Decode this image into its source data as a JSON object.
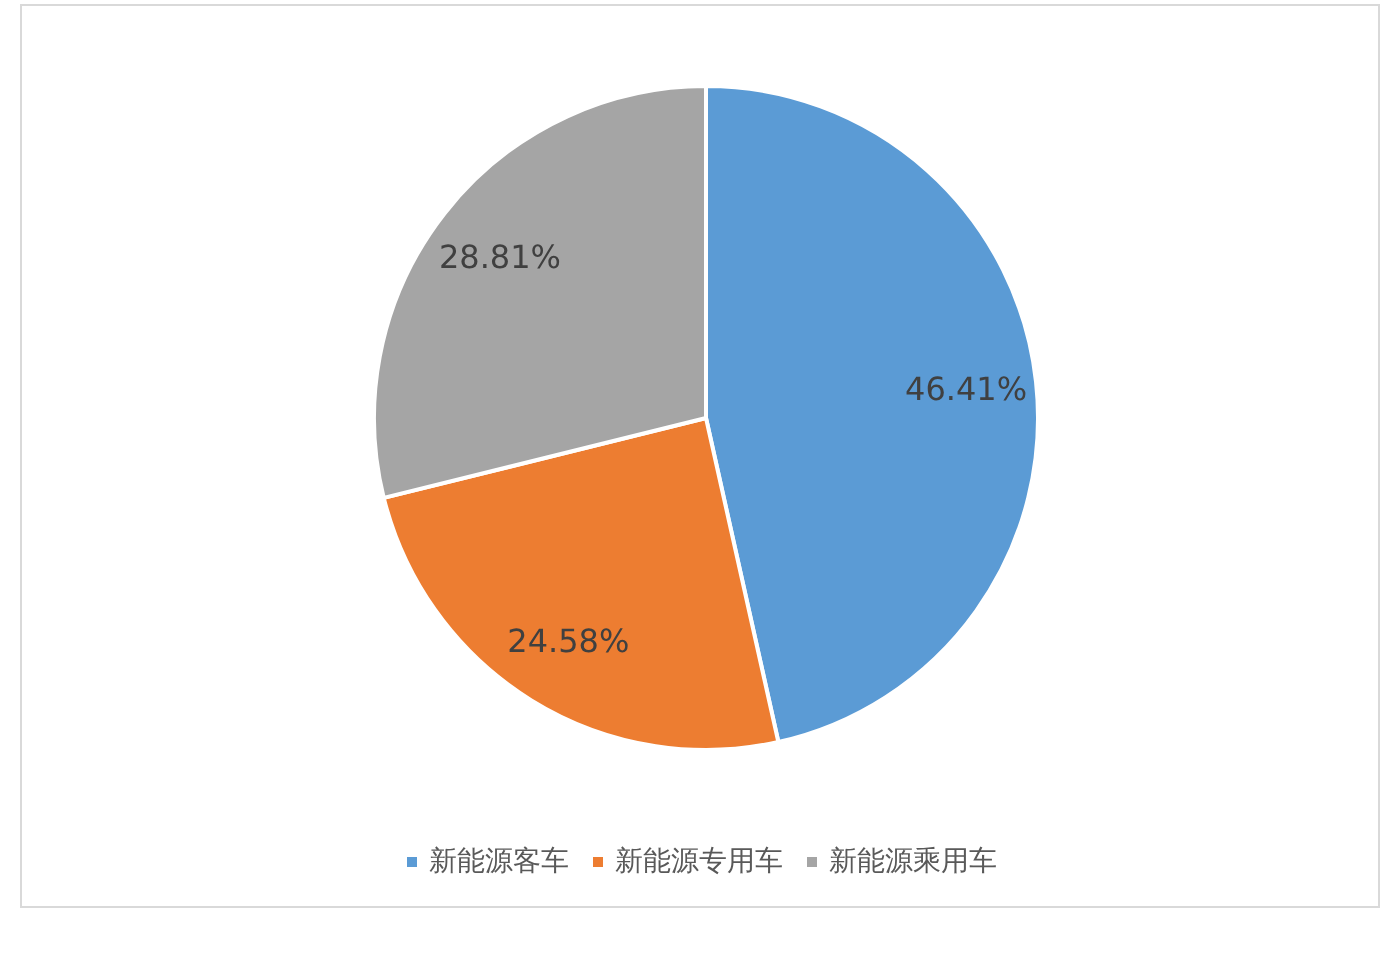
{
  "chart_data": {
    "type": "pie",
    "categories": [
      "新能源客车",
      "新能源专用车",
      "新能源乘用车"
    ],
    "values": [
      46.41,
      24.58,
      28.81
    ],
    "value_labels": [
      "46.41%",
      "24.58%",
      "28.81%"
    ],
    "colors": [
      "#5b9bd5",
      "#ed7d31",
      "#a5a5a5"
    ],
    "legend": "bottom"
  }
}
